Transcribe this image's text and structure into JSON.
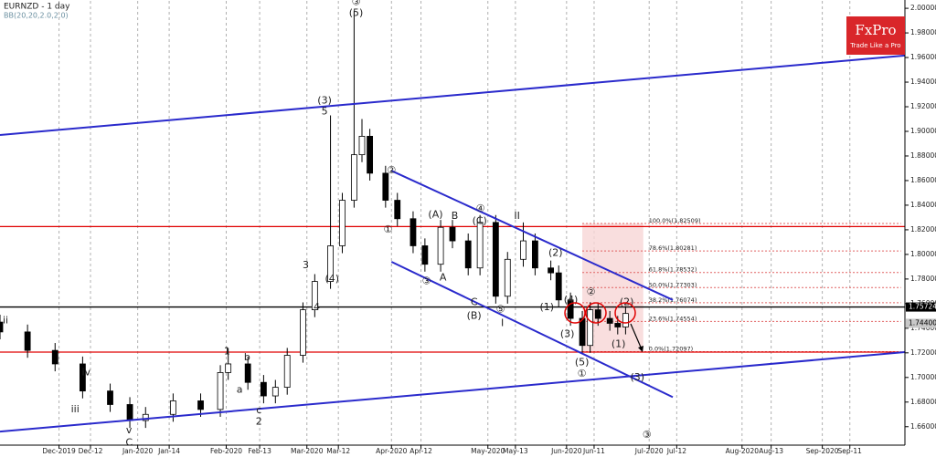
{
  "chart_data": {
    "type": "candlestick",
    "title": "EURNZD - 1 day",
    "subtitle": "BB(20,20,2.0,2.0)",
    "up_color": "#ffffff",
    "down_color": "#000000",
    "grid": true,
    "xlim": [
      0,
      230
    ],
    "ylim": [
      1.645,
      2.006
    ],
    "xticks": [
      {
        "value": 15,
        "label": "Dec-2019"
      },
      {
        "value": 23,
        "label": "Dec-12"
      },
      {
        "value": 35,
        "label": "Jan-2020"
      },
      {
        "value": 43,
        "label": "Jan-14"
      },
      {
        "value": 57.5,
        "label": "Feb-2020"
      },
      {
        "value": 66,
        "label": "Feb-13"
      },
      {
        "value": 78,
        "label": "Mar-2020"
      },
      {
        "value": 86,
        "label": "Mar-12"
      },
      {
        "value": 99.5,
        "label": "Apr-2020"
      },
      {
        "value": 107,
        "label": "Apr-12"
      },
      {
        "value": 124,
        "label": "May-2020"
      },
      {
        "value": 131,
        "label": "May-13"
      },
      {
        "value": 144,
        "label": "Jun-2020"
      },
      {
        "value": 151,
        "label": "Jun-11"
      },
      {
        "value": 165,
        "label": "Jul-2020"
      },
      {
        "value": 172,
        "label": "Jul-12"
      },
      {
        "value": 188.6,
        "label": "Aug-2020"
      },
      {
        "value": 196,
        "label": "Aug-13"
      },
      {
        "value": 209,
        "label": "Sep-2020"
      },
      {
        "value": 216,
        "label": "Sep-11"
      }
    ],
    "yticks": [
      {
        "value": 1.66,
        "label": "1.66000"
      },
      {
        "value": 1.68,
        "label": "1.68000"
      },
      {
        "value": 1.7,
        "label": "1.70000"
      },
      {
        "value": 1.72,
        "label": "1.72000"
      },
      {
        "value": 1.74,
        "label": "1.74000"
      },
      {
        "value": 1.76,
        "label": "1.76000"
      },
      {
        "value": 1.78,
        "label": "1.78000"
      },
      {
        "value": 1.8,
        "label": "1.80000"
      },
      {
        "value": 1.82,
        "label": "1.82000"
      },
      {
        "value": 1.84,
        "label": "1.84000"
      },
      {
        "value": 1.86,
        "label": "1.86000"
      },
      {
        "value": 1.88,
        "label": "1.88000"
      },
      {
        "value": 1.9,
        "label": "1.90000"
      },
      {
        "value": 1.92,
        "label": "1.92000"
      },
      {
        "value": 1.94,
        "label": "1.94000"
      },
      {
        "value": 1.96,
        "label": "1.96000"
      },
      {
        "value": 1.98,
        "label": "1.98000"
      },
      {
        "value": 2.0,
        "label": "2.00000"
      }
    ],
    "x": [
      0,
      7,
      14,
      21,
      28,
      33,
      37,
      44,
      51,
      56,
      58,
      63,
      67,
      70,
      73,
      77,
      80,
      84,
      87,
      90,
      92,
      94,
      98,
      101,
      105,
      108,
      112,
      115,
      119,
      122,
      126,
      129,
      133,
      136,
      140,
      142,
      145,
      148,
      150,
      152,
      155,
      157,
      159
    ],
    "open": [
      1.745,
      1.737,
      1.722,
      1.711,
      1.689,
      1.678,
      1.665,
      1.67,
      1.681,
      1.674,
      1.704,
      1.711,
      1.696,
      1.685,
      1.692,
      1.718,
      1.755,
      1.778,
      1.807,
      1.844,
      1.881,
      1.896,
      1.866,
      1.844,
      1.829,
      1.807,
      1.792,
      1.822,
      1.811,
      1.789,
      1.826,
      1.766,
      1.796,
      1.811,
      1.789,
      1.785,
      1.763,
      1.748,
      1.726,
      1.755,
      1.748,
      1.744,
      1.741
    ],
    "high": [
      1.751,
      1.743,
      1.728,
      1.717,
      1.695,
      1.684,
      1.676,
      1.687,
      1.687,
      1.71,
      1.724,
      1.717,
      1.702,
      1.698,
      1.724,
      1.761,
      1.784,
      1.913,
      1.85,
      1.998,
      1.91,
      1.902,
      1.872,
      1.85,
      1.835,
      1.813,
      1.828,
      1.828,
      1.817,
      1.832,
      1.832,
      1.802,
      1.826,
      1.817,
      1.795,
      1.791,
      1.769,
      1.754,
      1.761,
      1.761,
      1.754,
      1.75,
      1.758
    ],
    "low": [
      1.731,
      1.716,
      1.705,
      1.683,
      1.672,
      1.659,
      1.659,
      1.664,
      1.668,
      1.668,
      1.698,
      1.69,
      1.679,
      1.679,
      1.686,
      1.712,
      1.749,
      1.772,
      1.801,
      1.838,
      1.875,
      1.86,
      1.838,
      1.823,
      1.801,
      1.786,
      1.786,
      1.805,
      1.783,
      1.783,
      1.76,
      1.76,
      1.79,
      1.783,
      1.779,
      1.757,
      1.742,
      1.72,
      1.72,
      1.742,
      1.738,
      1.735,
      1.735
    ],
    "close": [
      1.737,
      1.722,
      1.711,
      1.689,
      1.678,
      1.665,
      1.67,
      1.681,
      1.674,
      1.704,
      1.711,
      1.696,
      1.685,
      1.692,
      1.718,
      1.755,
      1.778,
      1.807,
      1.844,
      1.881,
      1.896,
      1.866,
      1.844,
      1.829,
      1.807,
      1.792,
      1.822,
      1.811,
      1.789,
      1.826,
      1.766,
      1.796,
      1.811,
      1.789,
      1.785,
      1.763,
      1.748,
      1.726,
      1.755,
      1.748,
      1.744,
      1.741,
      1.752
    ],
    "levels": [
      {
        "value": 1.8226,
        "color": "#e00000"
      },
      {
        "value": 1.7206,
        "color": "#e00000"
      },
      {
        "value": 1.75724,
        "color": "#000000"
      }
    ],
    "trendlines": [
      {
        "color": "#2a2acc",
        "x": [
          0,
          230
        ],
        "y": [
          1.897,
          1.9616
        ]
      },
      {
        "color": "#2a2acc",
        "x": [
          0,
          230
        ],
        "y": [
          1.656,
          1.7206
        ]
      },
      {
        "color": "#2a2acc",
        "x": [
          99.5,
          171
        ],
        "y": [
          1.868,
          1.763
        ]
      },
      {
        "color": "#2a2acc",
        "x": [
          99.5,
          171
        ],
        "y": [
          1.794,
          1.684
        ]
      }
    ],
    "fib": {
      "x": [
        148,
        229
      ],
      "box_end": 163.5,
      "levels": [
        {
          "value": 1.82509,
          "label": "100.0%(1.82509)"
        },
        {
          "value": 1.80281,
          "label": "78.6%(1.80281)"
        },
        {
          "value": 1.78532,
          "label": "61.8%(1.78532)"
        },
        {
          "value": 1.77303,
          "label": "50.0%(1.77303)"
        },
        {
          "value": 1.76074,
          "label": "38.2%(1.76074)"
        },
        {
          "value": 1.74554,
          "label": "23.6%(1.74554)"
        },
        {
          "value": 1.72097,
          "label": "0.0%(1.72097)"
        }
      ]
    },
    "price_labels": [
      {
        "value": 1.75724,
        "label": "1.75724",
        "color": "#000000"
      },
      {
        "value": 1.744,
        "label": "1.74400",
        "color": "#c8c8c8"
      }
    ],
    "annotations": [
      {
        "text": "(3)",
        "x": 82.5,
        "y": 1.925
      },
      {
        "text": "5",
        "x": 82.5,
        "y": 1.916
      },
      {
        "text": "(5)",
        "x": 90.5,
        "y": 1.996
      },
      {
        "text": "③",
        "x": 90.5,
        "y": 2.005
      },
      {
        "text": "3",
        "x": 77.7,
        "y": 1.791
      },
      {
        "text": "(4)",
        "x": 84.4,
        "y": 1.78
      },
      {
        "text": "4",
        "x": 80.5,
        "y": 1.757
      },
      {
        "text": "1",
        "x": 57.7,
        "y": 1.721
      },
      {
        "text": "2",
        "x": 65.8,
        "y": 1.664
      },
      {
        "text": "C",
        "x": 32.8,
        "y": 1.647
      },
      {
        "text": "(A)",
        "x": 110.7,
        "y": 1.832
      },
      {
        "text": "B",
        "x": 115.6,
        "y": 1.831
      },
      {
        "text": "A",
        "x": 112.6,
        "y": 1.781
      },
      {
        "text": "C",
        "x": 120.5,
        "y": 1.761
      },
      {
        "text": "(C)",
        "x": 121.9,
        "y": 1.827
      },
      {
        "text": "(B)",
        "x": 120.5,
        "y": 1.75
      },
      {
        "text": "II",
        "x": 131.4,
        "y": 1.831
      },
      {
        "text": "I",
        "x": 127.7,
        "y": 1.744
      },
      {
        "text": "(2)",
        "x": 141.2,
        "y": 1.801
      },
      {
        "text": "(1)",
        "x": 139,
        "y": 1.757
      },
      {
        "text": "(4)",
        "x": 145.1,
        "y": 1.763
      },
      {
        "text": "(3)",
        "x": 144.2,
        "y": 1.735
      },
      {
        "text": "(5)",
        "x": 147.9,
        "y": 1.712
      },
      {
        "text": "(2)",
        "x": 159.3,
        "y": 1.761
      },
      {
        "text": "(1)",
        "x": 157.2,
        "y": 1.727
      },
      {
        "text": "(3)",
        "x": 162,
        "y": 1.7
      },
      {
        "text": "②",
        "x": 99.5,
        "y": 1.868
      },
      {
        "text": "①",
        "x": 98.6,
        "y": 1.82
      },
      {
        "text": "④",
        "x": 122.1,
        "y": 1.837
      },
      {
        "text": "③",
        "x": 108.4,
        "y": 1.778
      },
      {
        "text": "⑤",
        "x": 127.2,
        "y": 1.755
      },
      {
        "text": "②",
        "x": 150.2,
        "y": 1.769
      },
      {
        "text": "①",
        "x": 147.9,
        "y": 1.703
      },
      {
        "text": "③",
        "x": 164.4,
        "y": 1.653
      },
      {
        "text": "ii",
        "x": 1.4,
        "y": 1.746
      },
      {
        "text": "iv",
        "x": 21.9,
        "y": 1.704
      },
      {
        "text": "iii",
        "x": 19.1,
        "y": 1.674
      },
      {
        "text": "v",
        "x": 32.8,
        "y": 1.657
      },
      {
        "text": "b",
        "x": 62.8,
        "y": 1.716
      },
      {
        "text": "a",
        "x": 60.9,
        "y": 1.69
      },
      {
        "text": "c",
        "x": 65.8,
        "y": 1.673
      }
    ]
  },
  "logo": {
    "name": "FxPro",
    "tagline": "Trade Like a Pro"
  }
}
